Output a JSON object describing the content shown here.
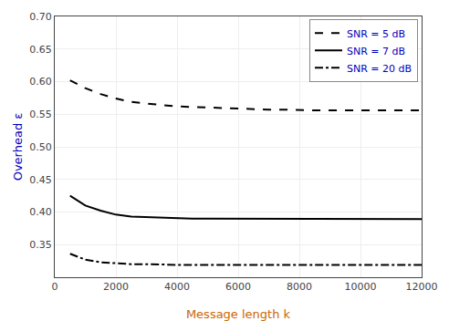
{
  "chart_data": {
    "type": "line",
    "xlabel": "Message length k",
    "ylabel": "Overhead ε",
    "xlim": [
      0,
      12000
    ],
    "ylim": [
      0.3,
      0.7
    ],
    "xticks": [
      0,
      2000,
      4000,
      6000,
      8000,
      10000,
      12000
    ],
    "yticks": [
      0.35,
      {
        "value": 0.4,
        "label": "0.40"
      },
      0.45,
      {
        "value": 0.5,
        "label": "0.50"
      },
      0.55,
      {
        "value": 0.6,
        "label": "0.60"
      },
      0.65,
      {
        "value": 0.7,
        "label": "0.70"
      }
    ],
    "grid": true,
    "legend": "upper right",
    "x": [
      500,
      1000,
      1500,
      2000,
      2500,
      3000,
      3500,
      4000,
      4500,
      5000,
      5500,
      6000,
      6500,
      7000,
      7500,
      8000,
      8500,
      9000,
      9500,
      10000,
      10500,
      11000,
      11500,
      12000
    ],
    "series": [
      {
        "name": "SNR = 5 dB",
        "color": "#000000",
        "line_style": "dashed",
        "values": [
          0.602,
          0.59,
          0.581,
          0.574,
          0.569,
          0.566,
          0.564,
          0.562,
          0.561,
          0.56,
          0.559,
          0.558,
          0.558,
          0.557,
          0.557,
          0.556,
          0.556,
          0.556,
          0.556,
          0.556,
          0.556,
          0.556,
          0.556,
          0.556
        ]
      },
      {
        "name": "SNR = 7 dB",
        "color": "#000000",
        "line_style": "solid",
        "values": [
          0.425,
          0.41,
          0.402,
          0.396,
          0.393,
          0.392,
          0.391,
          0.39,
          0.39,
          0.39,
          0.39,
          0.39,
          0.39,
          0.39,
          0.39,
          0.39,
          0.39,
          0.39,
          0.39,
          0.39,
          0.39,
          0.39,
          0.389,
          0.389
        ]
      },
      {
        "name": "SNR = 20 dB",
        "color": "#000000",
        "line_style": "dashdot",
        "values": [
          0.336,
          0.327,
          0.323,
          0.321,
          0.32,
          0.32,
          0.319,
          0.319,
          0.319,
          0.319,
          0.319,
          0.319,
          0.319,
          0.319,
          0.319,
          0.319,
          0.319,
          0.319,
          0.319,
          0.319,
          0.319,
          0.319,
          0.319,
          0.319
        ]
      }
    ]
  }
}
